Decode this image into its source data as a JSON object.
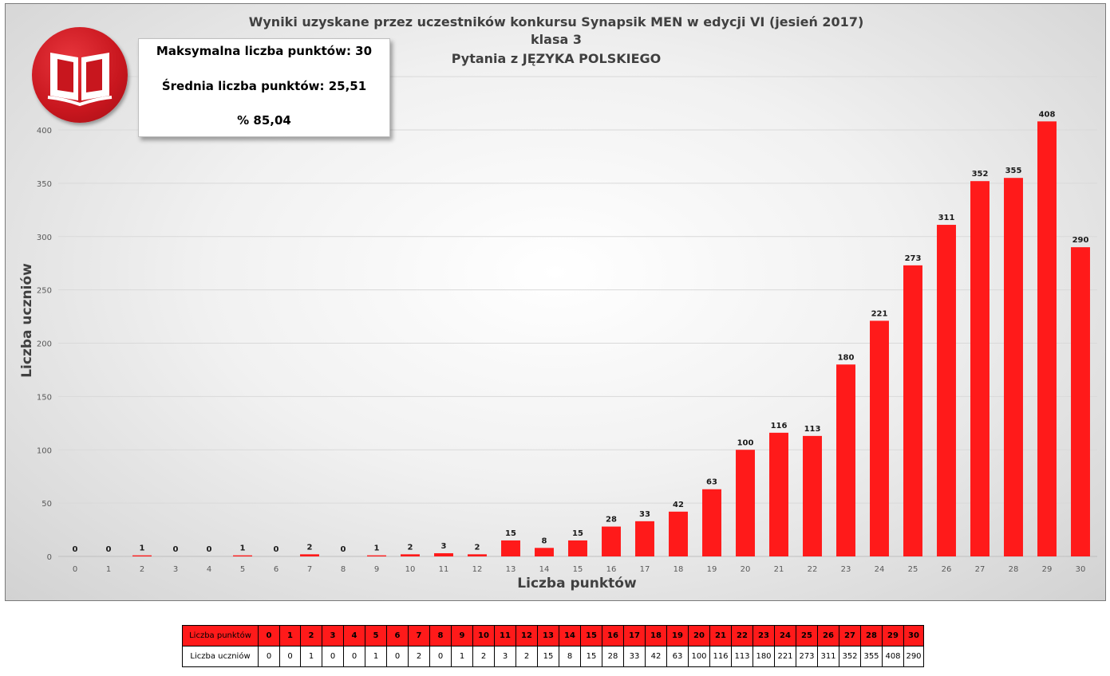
{
  "chart_data": {
    "type": "bar",
    "title_lines": [
      "Wyniki uzyskane przez uczestników konkursu Synapsik MEN w edycji VI (jesień 2017)",
      "klasa 3",
      "Pytania z JĘZYKA POLSKIEGO"
    ],
    "xlabel": "Liczba punktów",
    "ylabel": "Liczba uczniów",
    "ylim": [
      0,
      450
    ],
    "yticks": [
      0,
      50,
      100,
      150,
      200,
      250,
      300,
      350,
      400
    ],
    "grid": true,
    "bar_color": "#ff1a1a",
    "categories": [
      "0",
      "1",
      "2",
      "3",
      "4",
      "5",
      "6",
      "7",
      "8",
      "9",
      "10",
      "11",
      "12",
      "13",
      "14",
      "15",
      "16",
      "17",
      "18",
      "19",
      "20",
      "21",
      "22",
      "23",
      "24",
      "25",
      "26",
      "27",
      "28",
      "29",
      "30"
    ],
    "values": [
      0,
      0,
      1,
      0,
      0,
      1,
      0,
      2,
      0,
      1,
      2,
      3,
      2,
      15,
      8,
      15,
      28,
      33,
      42,
      63,
      100,
      116,
      113,
      180,
      221,
      273,
      311,
      352,
      355,
      408,
      290
    ]
  },
  "info_box": {
    "max_points": "Maksymalna liczba punktów: 30",
    "avg_points": "Średnia liczba punktów: 25,51",
    "percent": "% 85,04"
  },
  "logo": {
    "icon": "open-book-icon",
    "color": "#c8161e"
  },
  "table": {
    "header_label": "Liczba punktów",
    "value_label": "Liczba uczniów",
    "header_color": "#ff1a1a"
  }
}
